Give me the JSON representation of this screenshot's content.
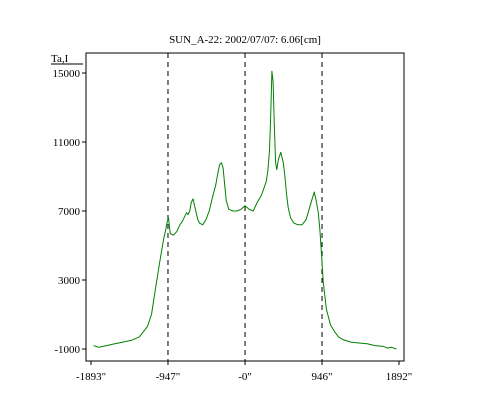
{
  "chart_data": {
    "type": "line",
    "title": "SUN_A-22: 2002/07/07: 6.06[cm]",
    "ylabel": "Ta,I",
    "xlabel": "",
    "xlim": [
      -1893,
      1892
    ],
    "ylim": [
      -1000,
      16000
    ],
    "grid": false,
    "x_ticks": [
      {
        "value": -1893,
        "label": "-1893\""
      },
      {
        "value": -947,
        "label": "-947\""
      },
      {
        "value": 0,
        "label": "-0\""
      },
      {
        "value": 946,
        "label": "946\""
      },
      {
        "value": 1892,
        "label": "1892\""
      }
    ],
    "y_ticks": [
      {
        "value": 15000,
        "label": "15000"
      },
      {
        "value": 11000,
        "label": "11000"
      },
      {
        "value": 7000,
        "label": "7000"
      },
      {
        "value": 3000,
        "label": "3000"
      },
      {
        "value": -1000,
        "label": "-1000"
      }
    ],
    "vlines": [
      -947,
      0,
      946
    ],
    "series": [
      {
        "color": "#008000",
        "x": [
          -1860,
          -1800,
          -1700,
          -1600,
          -1500,
          -1400,
          -1300,
          -1200,
          -1150,
          -1100,
          -1050,
          -1000,
          -975,
          -955,
          -940,
          -920,
          -880,
          -840,
          -800,
          -770,
          -740,
          -720,
          -700,
          -680,
          -660,
          -640,
          -620,
          -600,
          -580,
          -560,
          -520,
          -480,
          -440,
          -400,
          -360,
          -330,
          -310,
          -290,
          -270,
          -250,
          -230,
          -200,
          -150,
          -100,
          -50,
          0,
          50,
          100,
          150,
          200,
          230,
          260,
          280,
          300,
          315,
          330,
          345,
          360,
          375,
          390,
          410,
          440,
          470,
          490,
          510,
          530,
          560,
          600,
          650,
          700,
          750,
          800,
          850,
          875,
          900,
          920,
          940,
          960,
          1000,
          1050,
          1100,
          1150,
          1200,
          1300,
          1400,
          1500,
          1600,
          1700,
          1750,
          1800,
          1860
        ],
        "y": [
          -800,
          -900,
          -800,
          -700,
          -600,
          -500,
          -300,
          300,
          1000,
          2500,
          4000,
          5400,
          5900,
          6400,
          6600,
          5700,
          5600,
          5800,
          6200,
          6400,
          6700,
          6900,
          6800,
          7000,
          7500,
          7700,
          7300,
          6900,
          6500,
          6300,
          6200,
          6500,
          7000,
          7800,
          8500,
          9300,
          9700,
          9800,
          9500,
          8500,
          7600,
          7100,
          7000,
          7000,
          7100,
          7300,
          7100,
          7000,
          7500,
          7900,
          8300,
          8700,
          9300,
          10500,
          12500,
          15100,
          14500,
          12000,
          9800,
          9400,
          10000,
          10400,
          9800,
          9000,
          8000,
          7200,
          6600,
          6300,
          6200,
          6200,
          6500,
          7300,
          8100,
          7600,
          6900,
          5900,
          4500,
          2900,
          1300,
          400,
          0,
          -300,
          -450,
          -600,
          -650,
          -700,
          -800,
          -850,
          -950,
          -900,
          -1000
        ]
      }
    ]
  }
}
